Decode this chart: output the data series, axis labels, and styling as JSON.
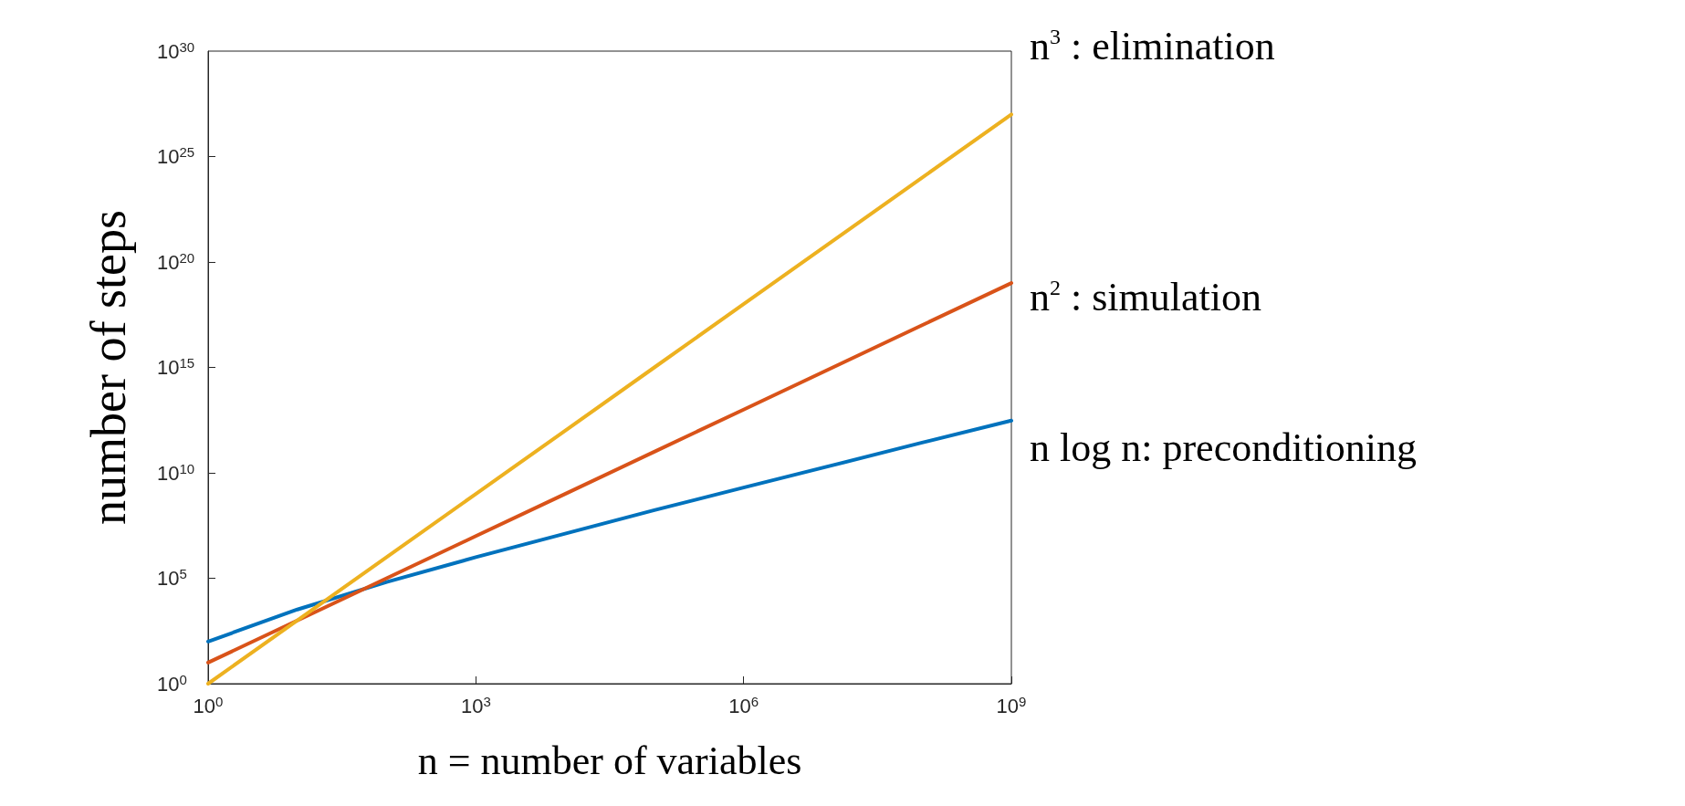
{
  "chart_data": {
    "type": "line",
    "xlabel": "n = number of variables",
    "ylabel": "number of steps",
    "log": "xy",
    "grid": false,
    "legend": false,
    "marker": "none",
    "line_style": "solid",
    "xlim": [
      1,
      1000000000
    ],
    "ylim": [
      1,
      1e+30
    ],
    "xticks": [
      {
        "value": 1,
        "label": "10$^{0}$"
      },
      {
        "value": 1000,
        "label": "10$^{3}$"
      },
      {
        "value": 1000000,
        "label": "10$^{6}$"
      },
      {
        "value": 1000000000,
        "label": "10$^{9}$"
      }
    ],
    "yticks": [
      {
        "value": 1,
        "label": "10$^{0}$"
      },
      {
        "value": 100000.0,
        "label": "10$^{5}$"
      },
      {
        "value": 10000000000.0,
        "label": "10$^{10}$"
      },
      {
        "value": 1000000000000000.0,
        "label": "10$^{15}$"
      },
      {
        "value": 1e+20,
        "label": "10$^{20}$"
      },
      {
        "value": 1e+25,
        "label": "10$^{25}$"
      },
      {
        "value": 1e+30,
        "label": "10$^{30}$"
      }
    ],
    "x": [
      1,
      10,
      100,
      1000,
      10000,
      100000,
      1000000,
      10000000,
      100000000,
      1000000000
    ],
    "series": [
      {
        "name": "n log n: preconditioning",
        "color": "#0072bd",
        "values": [
          100,
          3300,
          66000,
          1000000,
          13000000,
          170000000,
          2000000000,
          23000000000,
          270000000000,
          3000000000000
        ]
      },
      {
        "name": "n$^{2}$ : simulation",
        "color": "#d95319",
        "values": [
          10,
          1000,
          100000,
          10000000,
          1000000000.0,
          100000000000.0,
          10000000000000.0,
          1000000000000000.0,
          1e+17,
          1e+19
        ]
      },
      {
        "name": "n$^{3}$ : elimination",
        "color": "#edb120",
        "values": [
          1,
          1000,
          1000000,
          1000000000.0,
          1000000000000.0,
          1000000000000000.0,
          1e+18,
          1e+21,
          1e+24,
          1e+27
        ]
      }
    ]
  }
}
